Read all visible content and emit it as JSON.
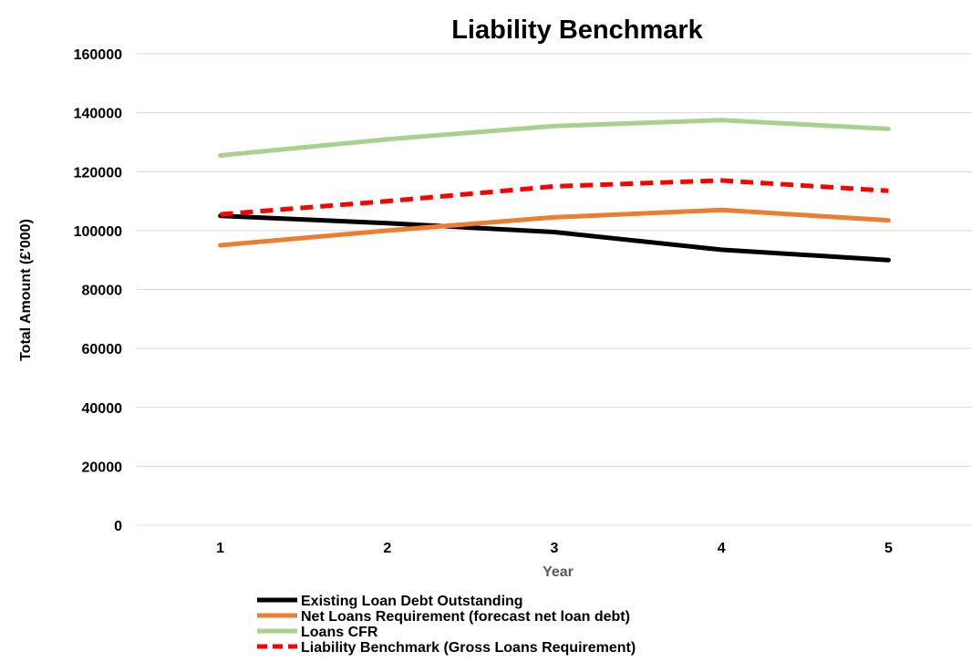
{
  "chart_data": {
    "type": "line",
    "title": "Liability Benchmark",
    "xlabel": "Year",
    "ylabel": "Total Amount (£'000)",
    "categories": [
      "1",
      "2",
      "3",
      "4",
      "5"
    ],
    "ylim": [
      0,
      160000
    ],
    "yticks": [
      "0",
      "20000",
      "40000",
      "60000",
      "80000",
      "100000",
      "120000",
      "140000",
      "160000"
    ],
    "grid": true,
    "legend_position": "bottom",
    "series": [
      {
        "name": "Existing Loan Debt Outstanding",
        "values": [
          105000,
          102500,
          99500,
          93500,
          90000
        ],
        "color": "#000000",
        "dashed": false
      },
      {
        "name": "Net Loans Requirement (forecast net loan debt)",
        "values": [
          95000,
          100000,
          104500,
          107000,
          103500
        ],
        "color": "#ED7D31",
        "dashed": false
      },
      {
        "name": "Loans CFR",
        "values": [
          125500,
          131000,
          135500,
          137500,
          134500
        ],
        "color": "#A9D18E",
        "dashed": false
      },
      {
        "name": "Liability Benchmark (Gross Loans Requirement)",
        "values": [
          105500,
          110000,
          115000,
          117000,
          113500
        ],
        "color": "#FF0000",
        "dashed": true
      }
    ]
  }
}
